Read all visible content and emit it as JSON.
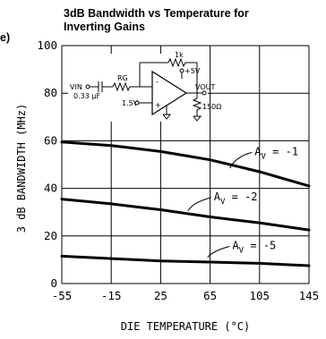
{
  "panel_letter": "e)",
  "chart_data": {
    "type": "line",
    "title": "3dB Bandwidth vs Temperature for Inverting Gains",
    "title_lines": [
      "3dB Bandwidth vs Temperature for",
      "Inverting Gains"
    ],
    "xlabel": "DIE TEMPERATURE (°C)",
    "ylabel": "3 dB BANDWIDTH (MHz)",
    "xlim": [
      -55,
      145
    ],
    "ylim": [
      0,
      100
    ],
    "x_ticks": [
      -55,
      -15,
      25,
      65,
      105,
      145
    ],
    "x_tick_labels": [
      "-55",
      "-15",
      "25",
      "65",
      "105",
      "145"
    ],
    "y_ticks": [
      0,
      20,
      40,
      60,
      80,
      100
    ],
    "y_tick_labels": [
      "0",
      "20",
      "40",
      "60",
      "80",
      "100"
    ],
    "grid": true,
    "legend": "none",
    "series": [
      {
        "label": "A_V = -1",
        "label_prefix": "A",
        "label_sub": "V",
        "label_suffix": " = -1",
        "x": [
          -55,
          -15,
          25,
          65,
          105,
          145
        ],
        "y": [
          59.5,
          58,
          55.5,
          52,
          47,
          41
        ],
        "label_at": [
          81,
          48.5
        ],
        "label_pos": [
          101,
          54
        ]
      },
      {
        "label": "A_V = -2",
        "label_prefix": "A",
        "label_sub": "V",
        "label_suffix": " = -2",
        "x": [
          -55,
          -15,
          25,
          65,
          105,
          145
        ],
        "y": [
          35.5,
          33.5,
          31,
          28,
          25.5,
          22.5
        ],
        "label_at": [
          47,
          30.5
        ],
        "label_pos": [
          68,
          35
        ]
      },
      {
        "label": "A_V = -5",
        "label_prefix": "A",
        "label_sub": "V",
        "label_suffix": " = -5",
        "x": [
          -55,
          -15,
          25,
          65,
          105,
          145
        ],
        "y": [
          11.5,
          10.5,
          9.5,
          9,
          8.5,
          7.5
        ],
        "label_at": [
          63,
          11
        ],
        "label_pos": [
          83,
          14.5
        ]
      }
    ]
  },
  "inset_circuit": {
    "feedback_resistor": "1k",
    "supply_label": "+5V",
    "input_label": "VIN",
    "gain_resistor": "RG",
    "input_capacitor": "0.33 μF",
    "bias_label": "1.5V",
    "output_label": "VOUT",
    "load_resistor": "150Ω",
    "inv_sign": "-",
    "noninv_sign": "+"
  }
}
